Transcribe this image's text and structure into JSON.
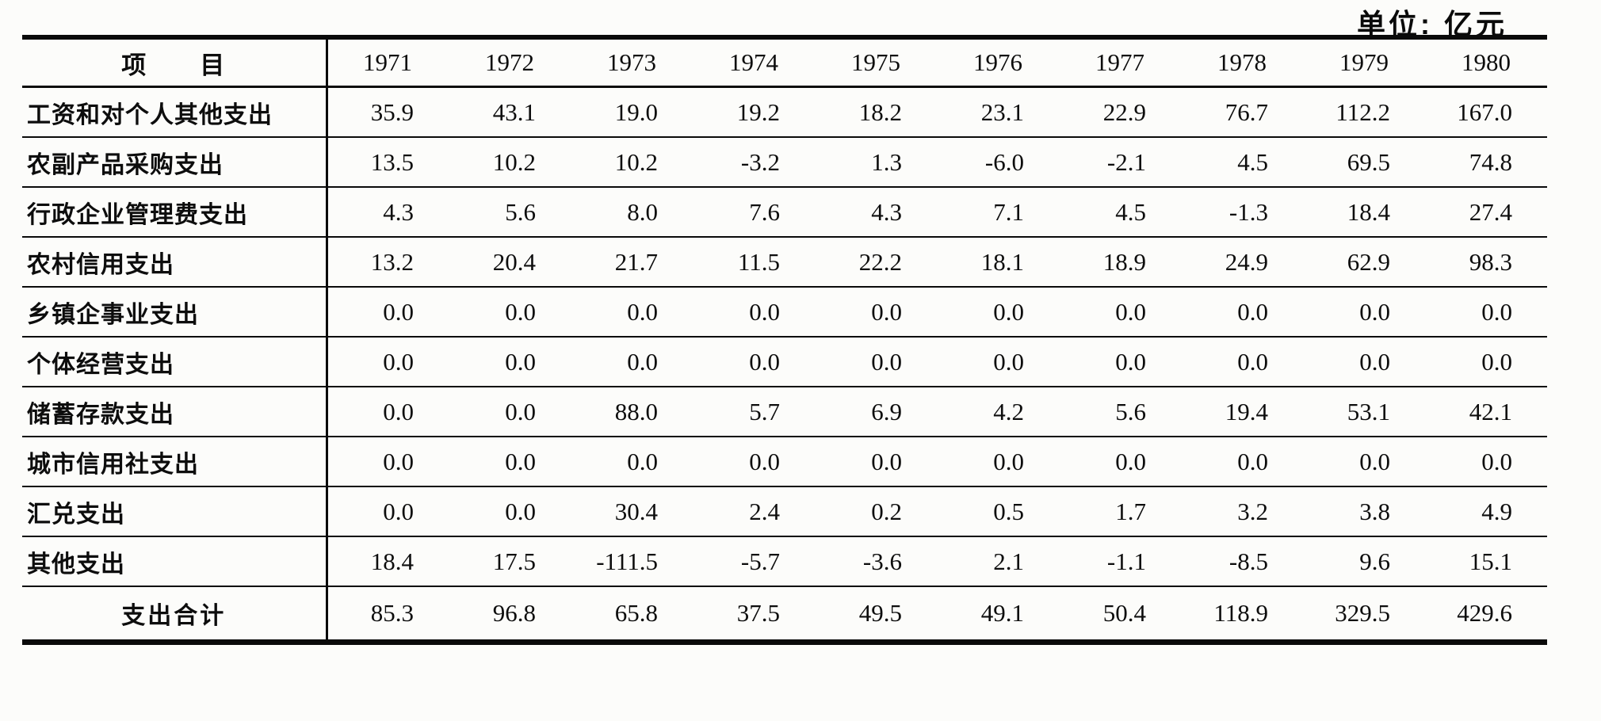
{
  "page": {
    "unit_note": "单位: 亿元"
  },
  "table": {
    "header": {
      "item_label": "项　　目",
      "years": [
        "1971",
        "1972",
        "1973",
        "1974",
        "1975",
        "1976",
        "1977",
        "1978",
        "1979",
        "1980"
      ]
    },
    "rows": [
      {
        "label": "工资和对个人其他支出",
        "values": [
          "35.9",
          "43.1",
          "19.0",
          "19.2",
          "18.2",
          "23.1",
          "22.9",
          "76.7",
          "112.2",
          "167.0"
        ]
      },
      {
        "label": "农副产品采购支出",
        "values": [
          "13.5",
          "10.2",
          "10.2",
          "-3.2",
          "1.3",
          "-6.0",
          "-2.1",
          "4.5",
          "69.5",
          "74.8"
        ]
      },
      {
        "label": "行政企业管理费支出",
        "values": [
          "4.3",
          "5.6",
          "8.0",
          "7.6",
          "4.3",
          "7.1",
          "4.5",
          "-1.3",
          "18.4",
          "27.4"
        ]
      },
      {
        "label": "农村信用支出",
        "values": [
          "13.2",
          "20.4",
          "21.7",
          "11.5",
          "22.2",
          "18.1",
          "18.9",
          "24.9",
          "62.9",
          "98.3"
        ]
      },
      {
        "label": "乡镇企事业支出",
        "values": [
          "0.0",
          "0.0",
          "0.0",
          "0.0",
          "0.0",
          "0.0",
          "0.0",
          "0.0",
          "0.0",
          "0.0"
        ]
      },
      {
        "label": "个体经营支出",
        "values": [
          "0.0",
          "0.0",
          "0.0",
          "0.0",
          "0.0",
          "0.0",
          "0.0",
          "0.0",
          "0.0",
          "0.0"
        ]
      },
      {
        "label": "储蓄存款支出",
        "values": [
          "0.0",
          "0.0",
          "88.0",
          "5.7",
          "6.9",
          "4.2",
          "5.6",
          "19.4",
          "53.1",
          "42.1"
        ]
      },
      {
        "label": "城市信用社支出",
        "values": [
          "0.0",
          "0.0",
          "0.0",
          "0.0",
          "0.0",
          "0.0",
          "0.0",
          "0.0",
          "0.0",
          "0.0"
        ]
      },
      {
        "label": "汇兑支出",
        "values": [
          "0.0",
          "0.0",
          "30.4",
          "2.4",
          "0.2",
          "0.5",
          "1.7",
          "3.2",
          "3.8",
          "4.9"
        ]
      },
      {
        "label": "其他支出",
        "values": [
          "18.4",
          "17.5",
          "-111.5",
          "-5.7",
          "-3.6",
          "2.1",
          "-1.1",
          "-8.5",
          "9.6",
          "15.1"
        ]
      }
    ],
    "total_row": {
      "label": "支出合计",
      "values": [
        "85.3",
        "96.8",
        "65.8",
        "37.5",
        "49.5",
        "49.1",
        "50.4",
        "118.9",
        "329.5",
        "429.6"
      ]
    }
  }
}
